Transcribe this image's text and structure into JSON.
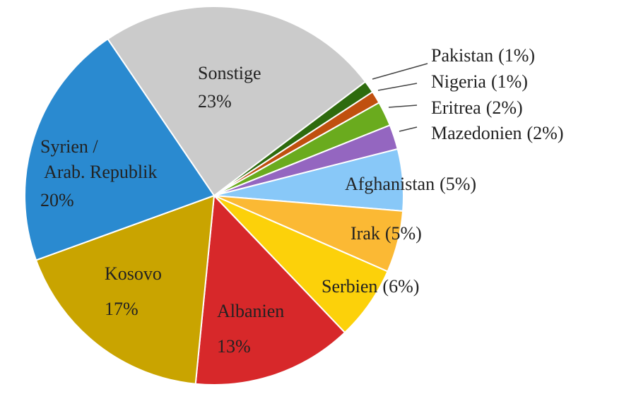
{
  "chart_data": {
    "type": "pie",
    "categories": [
      "Pakistan",
      "Nigeria",
      "Eritrea",
      "Mazedonien",
      "Afghanistan",
      "Irak",
      "Serbien",
      "Albanien",
      "Kosovo",
      "Syrien / Arab. Republik",
      "Sonstige"
    ],
    "values": [
      1,
      1,
      2,
      2,
      5,
      5,
      6,
      13,
      17,
      20,
      23
    ],
    "value_labels": [
      "(1%)",
      "(1%)",
      "(2%)",
      "(2%)",
      "(5%)",
      "(5%)",
      "(6%)",
      "13%",
      "17%",
      "20%",
      "23%"
    ],
    "colors": [
      "#2e6b0e",
      "#c0500f",
      "#6aab1e",
      "#9466c0",
      "#88c8f8",
      "#fbb934",
      "#fcd10a",
      "#d7282a",
      "#c9a400",
      "#2a8ad0",
      "#cbcbcb"
    ]
  }
}
